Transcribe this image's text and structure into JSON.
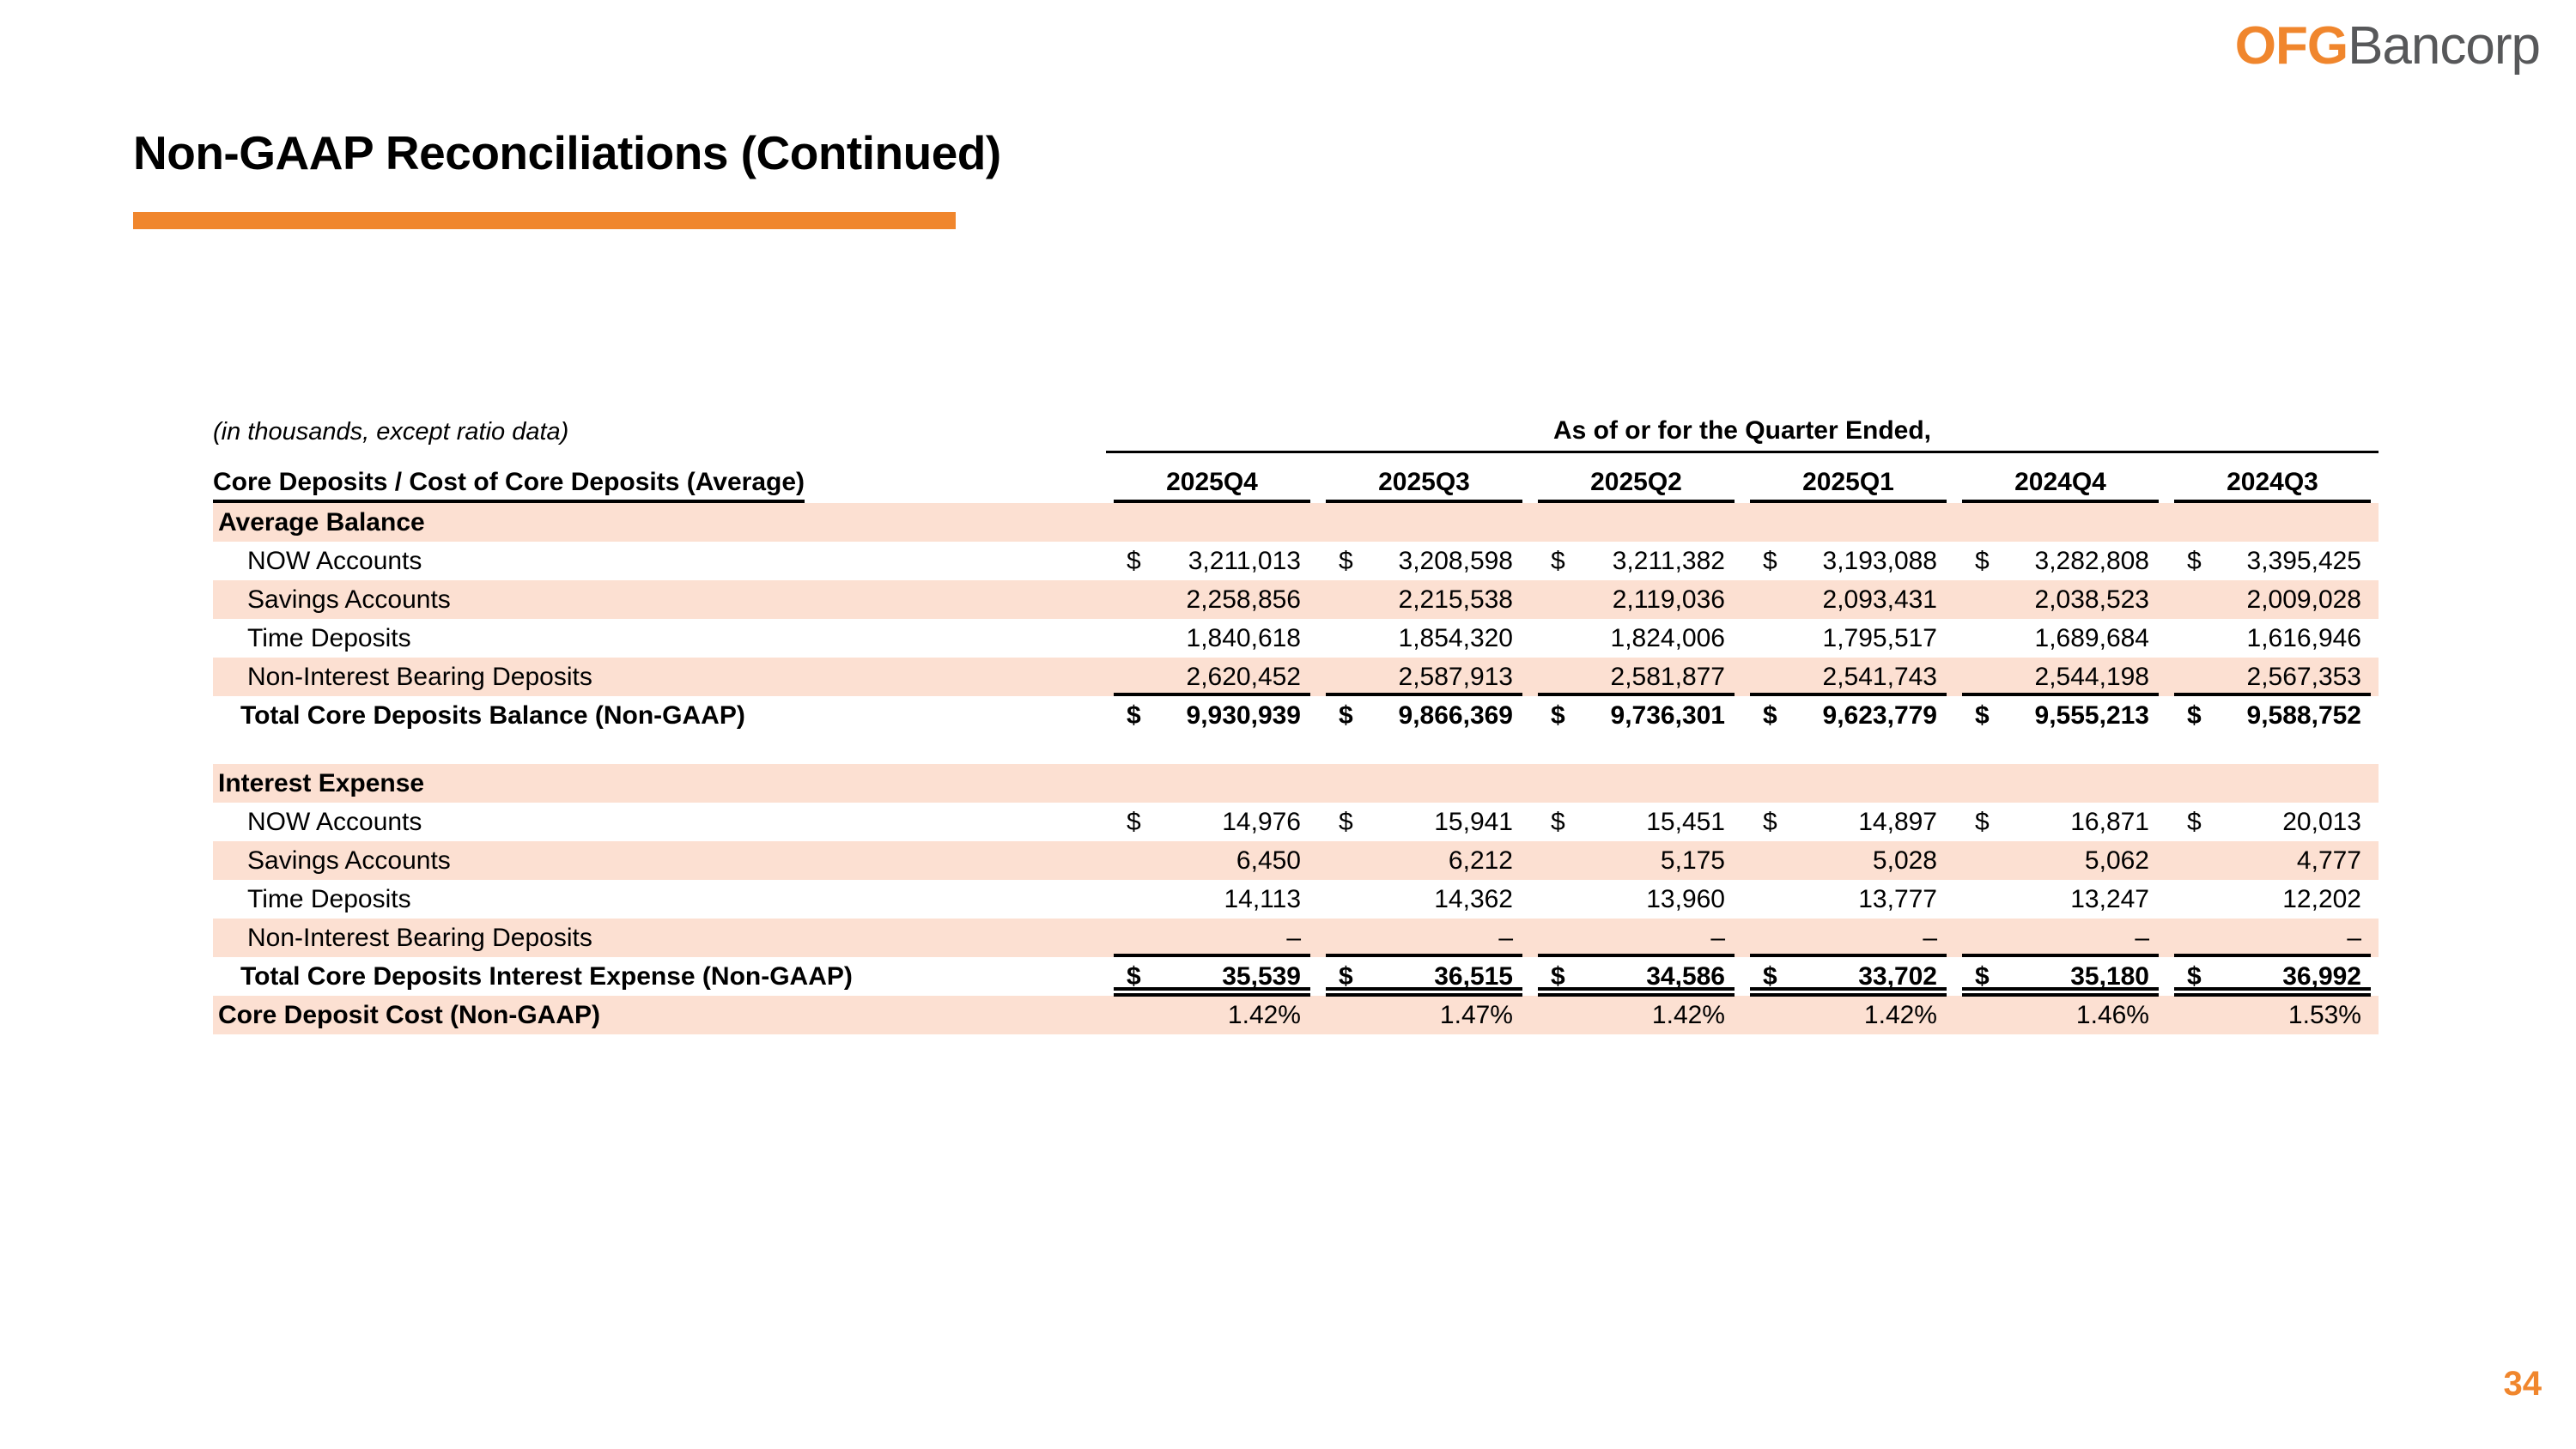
{
  "brand": {
    "logo_prefix": "OFG",
    "logo_suffix": "Bancorp"
  },
  "header": {
    "title": "Non-GAAP Reconciliations (Continued)"
  },
  "footer": {
    "page_number": "34"
  },
  "colors": {
    "accent_orange": "#F0862D",
    "row_shade_peach": "#FCE0D2",
    "logo_gray": "#57585A",
    "text_black": "#000000"
  },
  "table": {
    "note": "(in thousands, except ratio data)",
    "quarter_group_header": "As of or for the Quarter Ended,",
    "row_group_header": "Core Deposits / Cost of Core Deposits (Average)",
    "columns": [
      "2025Q4",
      "2025Q3",
      "2025Q2",
      "2025Q1",
      "2024Q4",
      "2024Q3"
    ],
    "rows": [
      {
        "label": "Average Balance",
        "type": "section",
        "shaded": true
      },
      {
        "label": "NOW Accounts",
        "type": "item",
        "shaded": false,
        "dollar": true,
        "values": [
          "3,211,013",
          "3,208,598",
          "3,211,382",
          "3,193,088",
          "3,282,808",
          "3,395,425"
        ]
      },
      {
        "label": "Savings Accounts",
        "type": "item",
        "shaded": true,
        "values": [
          "2,258,856",
          "2,215,538",
          "2,119,036",
          "2,093,431",
          "2,038,523",
          "2,009,028"
        ]
      },
      {
        "label": "Time Deposits",
        "type": "item",
        "shaded": false,
        "values": [
          "1,840,618",
          "1,854,320",
          "1,824,006",
          "1,795,517",
          "1,689,684",
          "1,616,946"
        ]
      },
      {
        "label": "Non-Interest Bearing Deposits",
        "type": "item",
        "shaded": true,
        "rule_below": "single",
        "values": [
          "2,620,452",
          "2,587,913",
          "2,581,877",
          "2,541,743",
          "2,544,198",
          "2,567,353"
        ]
      },
      {
        "label": "Total Core Deposits Balance (Non-GAAP)",
        "type": "total",
        "shaded": false,
        "dollar": true,
        "values": [
          "9,930,939",
          "9,866,369",
          "9,736,301",
          "9,623,779",
          "9,555,213",
          "9,588,752"
        ]
      },
      {
        "type": "spacer"
      },
      {
        "label": "Interest Expense",
        "type": "section",
        "shaded": true
      },
      {
        "label": "NOW Accounts",
        "type": "item",
        "shaded": false,
        "dollar": true,
        "values": [
          "14,976",
          "15,941",
          "15,451",
          "14,897",
          "16,871",
          "20,013"
        ]
      },
      {
        "label": "Savings Accounts",
        "type": "item",
        "shaded": true,
        "values": [
          "6,450",
          "6,212",
          "5,175",
          "5,028",
          "5,062",
          "4,777"
        ]
      },
      {
        "label": "Time Deposits",
        "type": "item",
        "shaded": false,
        "values": [
          "14,113",
          "14,362",
          "13,960",
          "13,777",
          "13,247",
          "12,202"
        ]
      },
      {
        "label": "Non-Interest Bearing Deposits",
        "type": "item",
        "shaded": true,
        "rule_below": "single",
        "values": [
          "–",
          "–",
          "–",
          "–",
          "–",
          "–"
        ]
      },
      {
        "label": "Total Core Deposits Interest Expense (Non-GAAP)",
        "type": "total",
        "shaded": false,
        "dollar": true,
        "rule_below": "double",
        "values": [
          "35,539",
          "36,515",
          "34,586",
          "33,702",
          "35,180",
          "36,992"
        ]
      },
      {
        "label": "Core Deposit Cost (Non-GAAP)",
        "type": "ratio",
        "shaded": true,
        "values": [
          "1.42%",
          "1.47%",
          "1.42%",
          "1.42%",
          "1.46%",
          "1.53%"
        ]
      }
    ]
  }
}
